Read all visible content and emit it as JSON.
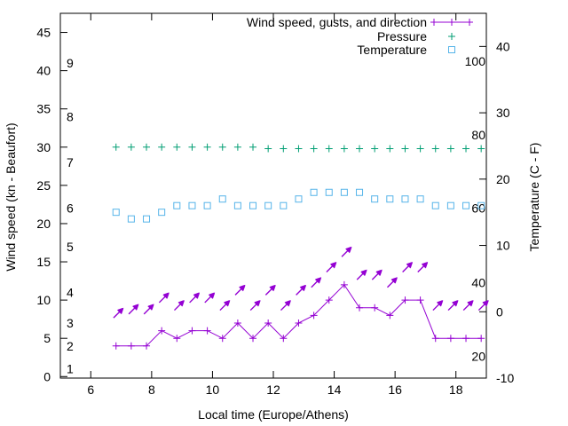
{
  "chart_data": {
    "type": "line",
    "xlabel": "Local time (Europe/Athens)",
    "ylabel_left": "Wind speed (kn - Beaufort)",
    "ylabel_right": "Temperature (C - F)",
    "x_range": [
      5,
      19
    ],
    "y_left_range": [
      -0.2,
      47.5
    ],
    "y_right_range": [
      -10,
      45
    ],
    "x_ticks": [
      "6",
      "8",
      "10",
      "12",
      "14",
      "16",
      "18"
    ],
    "y_left_ticks": [
      "0",
      "5",
      "10",
      "15",
      "20",
      "25",
      "30",
      "35",
      "40",
      "45"
    ],
    "y_right_ticks": [
      "-10",
      "0",
      "10",
      "20",
      "30",
      "40"
    ],
    "beaufort_labels": [
      {
        "text": "1",
        "kn": 1
      },
      {
        "text": "2",
        "kn": 4
      },
      {
        "text": "3",
        "kn": 7
      },
      {
        "text": "4",
        "kn": 11
      },
      {
        "text": "5",
        "kn": 17
      },
      {
        "text": "6",
        "kn": 22
      },
      {
        "text": "7",
        "kn": 28
      },
      {
        "text": "8",
        "kn": 34
      },
      {
        "text": "9",
        "kn": 41
      }
    ],
    "fahrenheit_labels": [
      {
        "text": "20",
        "c": -6.7
      },
      {
        "text": "40",
        "c": 4.4
      },
      {
        "text": "60",
        "c": 15.6
      },
      {
        "text": "80",
        "c": 26.7
      },
      {
        "text": "100",
        "c": 37.8
      }
    ],
    "legend": [
      {
        "label": "Wind speed, gusts, and direction",
        "color": "#9400d3",
        "marker": "plus-line"
      },
      {
        "label": "Pressure",
        "color": "#009e73",
        "marker": "plus"
      },
      {
        "label": "Temperature",
        "color": "#56b4e9",
        "marker": "square"
      }
    ],
    "x": [
      6.83,
      7.33,
      7.83,
      8.33,
      8.83,
      9.33,
      9.83,
      10.33,
      10.83,
      11.33,
      11.83,
      12.33,
      12.83,
      13.33,
      13.83,
      14.33,
      14.83,
      15.33,
      15.83,
      16.33,
      16.83,
      17.33,
      17.83,
      18.33,
      18.83
    ],
    "series": [
      {
        "name": "Wind speed",
        "axis": "left",
        "values": [
          4,
          4,
          4,
          6,
          5,
          6,
          6,
          5,
          7,
          5,
          7,
          5,
          7,
          8,
          10,
          12,
          9,
          9,
          8,
          10,
          10,
          5,
          5,
          5,
          5
        ]
      },
      {
        "name": "Gusts",
        "axis": "left",
        "values": [
          8,
          8.5,
          8.5,
          10,
          9,
          10,
          10,
          9,
          11,
          9,
          11,
          9,
          11,
          12,
          14,
          16,
          13,
          13,
          12,
          14,
          14,
          9,
          9,
          9,
          9
        ]
      },
      {
        "name": "Pressure",
        "axis": "left",
        "values": [
          30,
          30,
          30,
          30,
          30,
          30,
          30,
          30,
          30,
          30,
          29.8,
          29.8,
          29.8,
          29.8,
          29.8,
          29.8,
          29.8,
          29.8,
          29.8,
          29.8,
          29.8,
          29.8,
          29.8,
          29.8,
          29.8
        ]
      },
      {
        "name": "Temperature",
        "axis": "right",
        "values": [
          15,
          14,
          14,
          15,
          16,
          16,
          16,
          17,
          16,
          16,
          16,
          16,
          17,
          18,
          18,
          18,
          18,
          17,
          17,
          17,
          17,
          16,
          16,
          16,
          16
        ]
      }
    ]
  }
}
